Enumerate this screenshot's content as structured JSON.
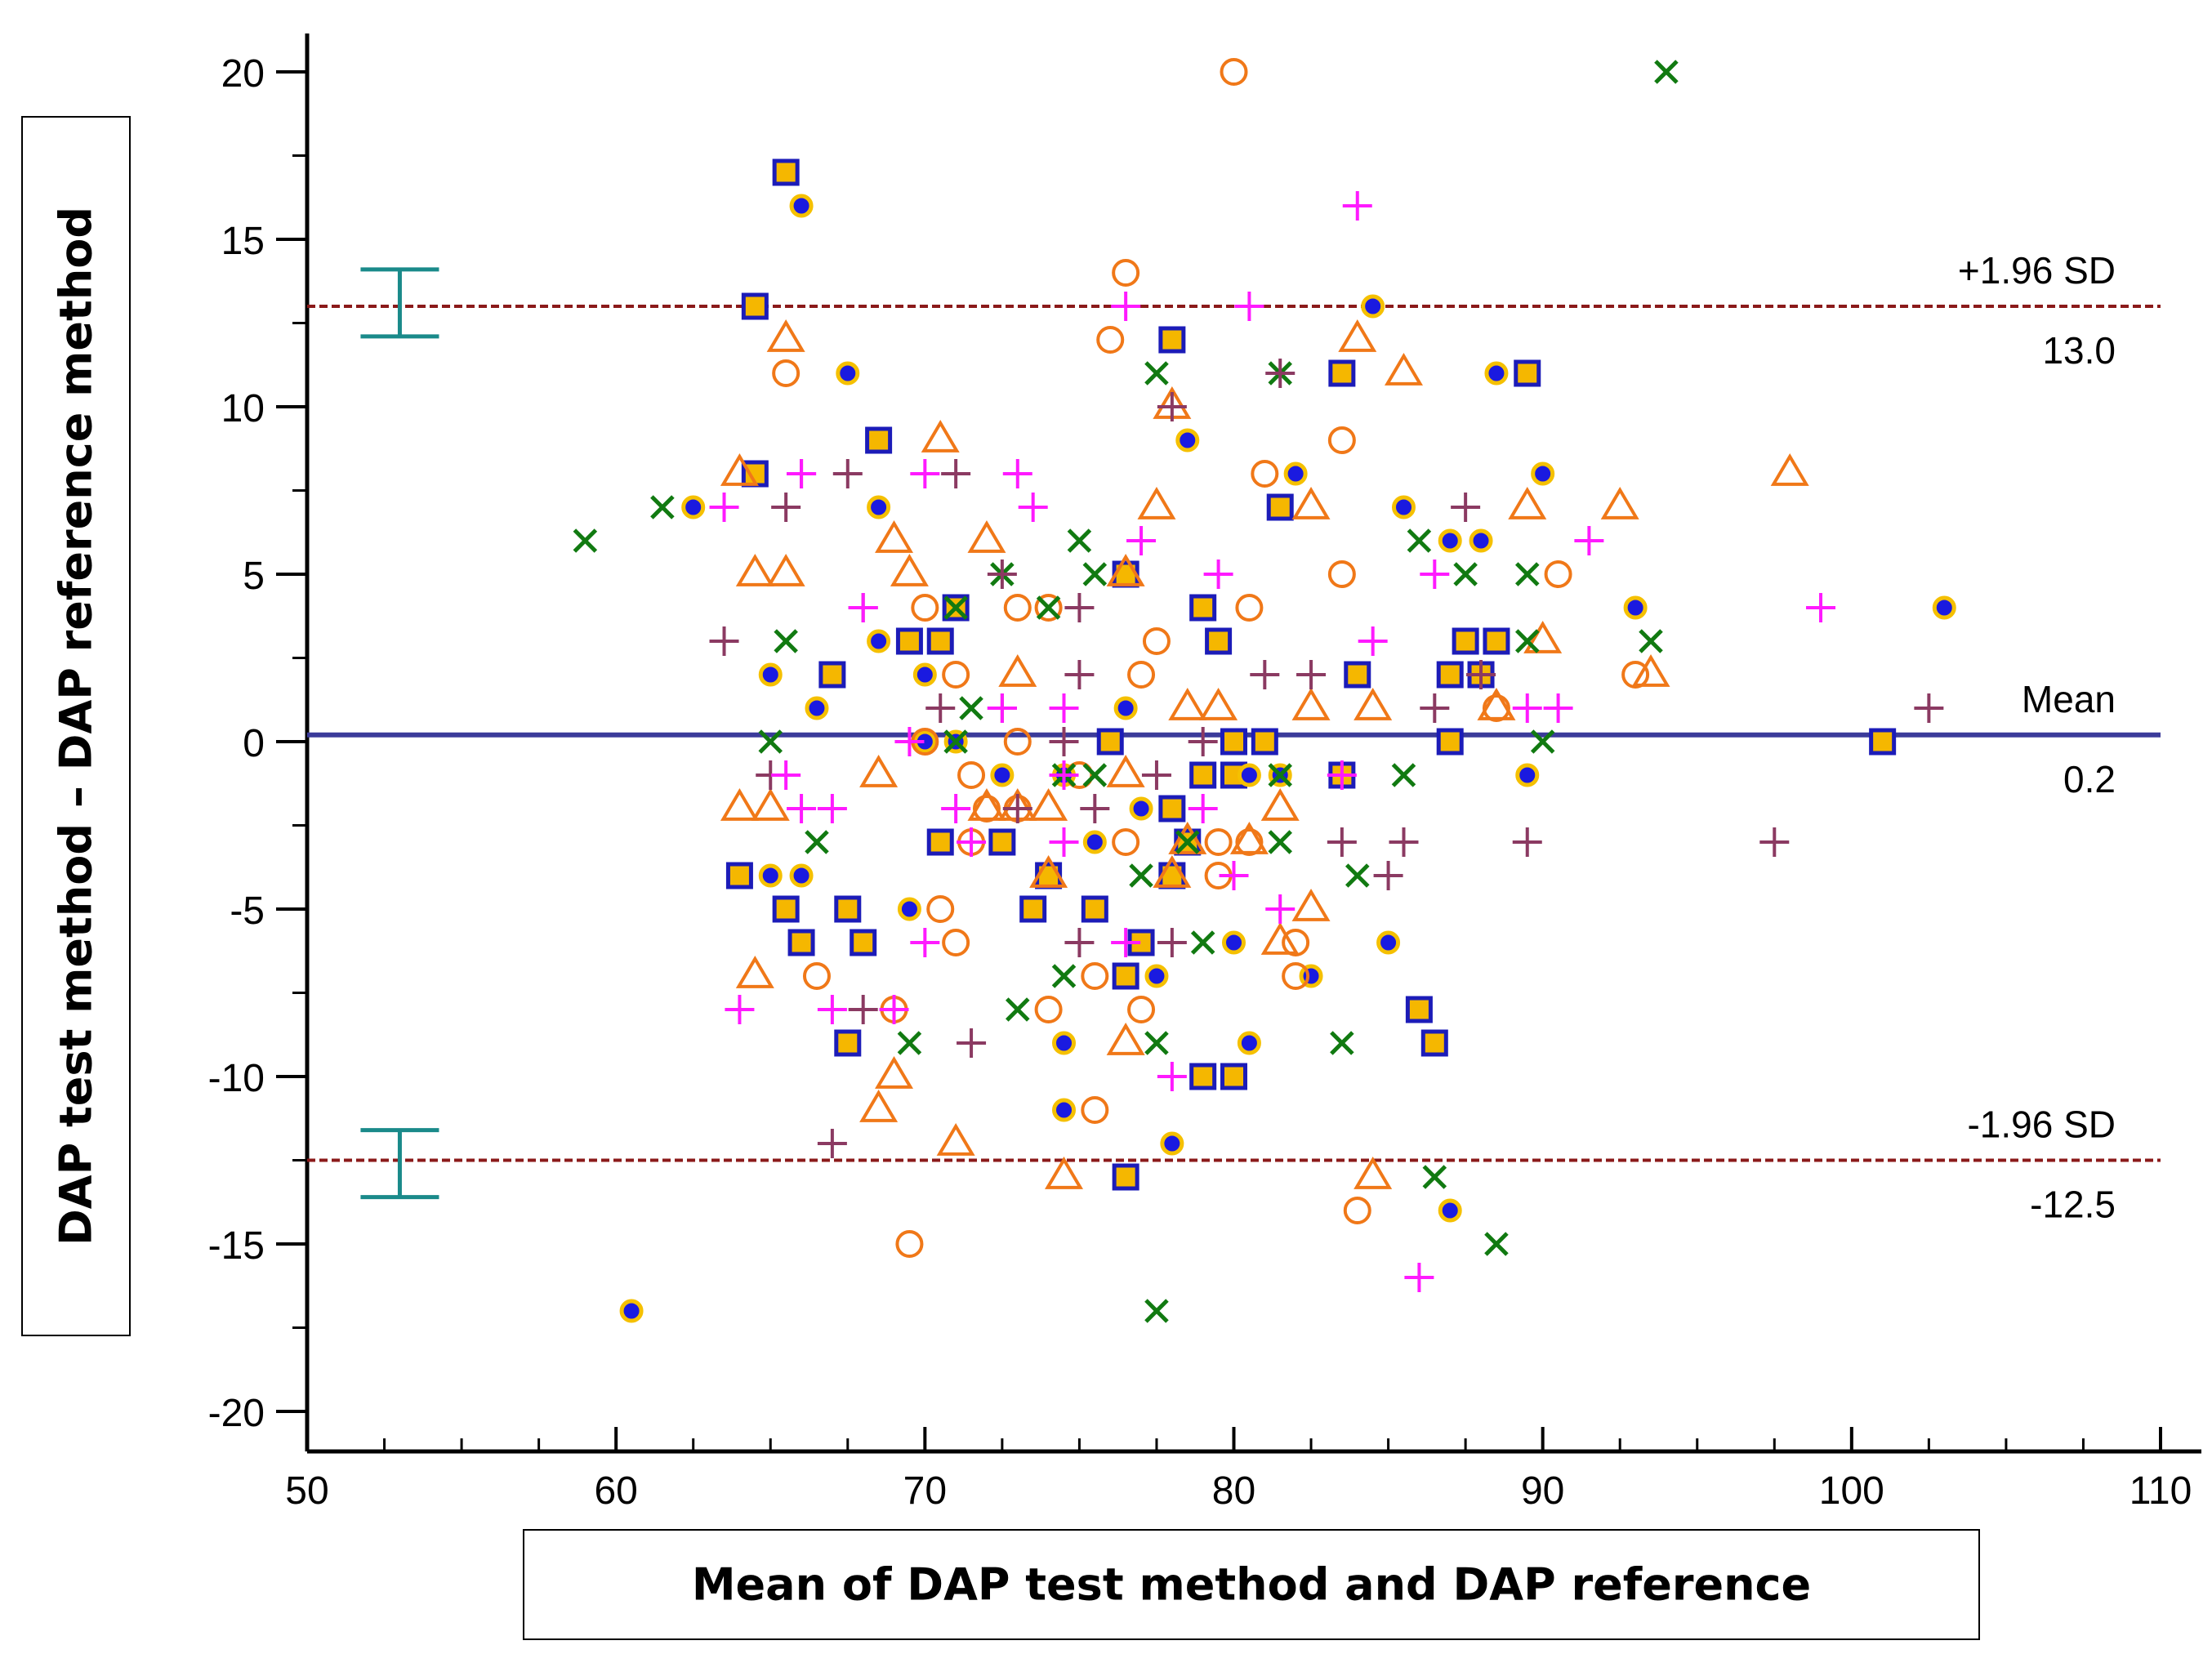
{
  "chart_data": {
    "type": "scatter",
    "title": "",
    "xlabel": "Mean of DAP test method and DAP reference",
    "ylabel": "DAP test method – DAP reference method",
    "xlim": [
      50,
      110
    ],
    "ylim": [
      -20,
      20
    ],
    "xticks": [
      50,
      60,
      70,
      80,
      90,
      100,
      110
    ],
    "yticks": [
      20,
      15,
      10,
      5,
      0,
      -5,
      -10,
      -15,
      -20
    ],
    "grid": false,
    "reference_lines": [
      {
        "label": "+1.96 SD",
        "value_label": "13.0",
        "value": 13.0,
        "style": "dashed",
        "color": "#8b1a1a"
      },
      {
        "label": "Mean",
        "value_label": "0.2",
        "value": 0.2,
        "style": "solid",
        "color": "#3b3b9a"
      },
      {
        "label": "-1.96 SD",
        "value_label": "-12.5",
        "value": -12.5,
        "style": "dashed",
        "color": "#8b1a1a"
      }
    ],
    "ci_bars": [
      {
        "x": 53,
        "y_low": 12.1,
        "y_high": 14.1,
        "color": "#1a8a8a"
      },
      {
        "x": 53,
        "y_low": -13.6,
        "y_high": -11.6,
        "color": "#1a8a8a"
      }
    ],
    "series": [
      {
        "marker": "square",
        "fill": "#f5b700",
        "edge": "#1c1cb8",
        "points": [
          [
            65.5,
            17
          ],
          [
            64.5,
            13
          ],
          [
            78,
            12
          ],
          [
            83.5,
            11
          ],
          [
            89.5,
            11
          ],
          [
            64.5,
            8
          ],
          [
            68.5,
            9
          ],
          [
            81.5,
            7
          ],
          [
            76.5,
            5
          ],
          [
            79,
            4
          ],
          [
            71,
            4
          ],
          [
            69.5,
            3
          ],
          [
            70.5,
            3
          ],
          [
            79.5,
            3
          ],
          [
            84,
            2
          ],
          [
            87,
            2
          ],
          [
            88,
            2
          ],
          [
            87.5,
            3
          ],
          [
            88.5,
            3
          ],
          [
            67,
            2
          ],
          [
            76,
            0
          ],
          [
            80,
            0
          ],
          [
            81,
            0
          ],
          [
            87,
            0
          ],
          [
            101,
            0
          ],
          [
            79,
            -1
          ],
          [
            80,
            -1
          ],
          [
            83.5,
            -1
          ],
          [
            78,
            -2
          ],
          [
            70.5,
            -3
          ],
          [
            72.5,
            -3
          ],
          [
            78.5,
            -3
          ],
          [
            64,
            -4
          ],
          [
            74,
            -4
          ],
          [
            78,
            -4
          ],
          [
            65.5,
            -5
          ],
          [
            67.5,
            -5
          ],
          [
            73.5,
            -5
          ],
          [
            75.5,
            -5
          ],
          [
            66,
            -6
          ],
          [
            68,
            -6
          ],
          [
            77,
            -6
          ],
          [
            76.5,
            -7
          ],
          [
            67.5,
            -9
          ],
          [
            86,
            -8
          ],
          [
            86.5,
            -9
          ],
          [
            79,
            -10
          ],
          [
            80,
            -10
          ],
          [
            76.5,
            -13
          ]
        ]
      },
      {
        "marker": "dot",
        "fill": "#1a1ae0",
        "edge": "#f5c000",
        "points": [
          [
            66,
            16
          ],
          [
            84.5,
            13
          ],
          [
            67.5,
            11
          ],
          [
            88.5,
            11
          ],
          [
            78.5,
            9
          ],
          [
            82,
            8
          ],
          [
            90,
            8
          ],
          [
            62.5,
            7
          ],
          [
            68.5,
            7
          ],
          [
            85.5,
            7
          ],
          [
            87,
            6
          ],
          [
            88,
            6
          ],
          [
            93,
            4
          ],
          [
            103,
            4
          ],
          [
            65,
            2
          ],
          [
            70,
            2
          ],
          [
            66.5,
            1
          ],
          [
            76.5,
            1
          ],
          [
            68.5,
            3
          ],
          [
            70,
            0
          ],
          [
            71,
            0
          ],
          [
            72.5,
            -1
          ],
          [
            74.5,
            -1
          ],
          [
            80.5,
            -1
          ],
          [
            81.5,
            -1
          ],
          [
            89.5,
            -1
          ],
          [
            77,
            -2
          ],
          [
            75.5,
            -3
          ],
          [
            65,
            -4
          ],
          [
            66,
            -4
          ],
          [
            69.5,
            -5
          ],
          [
            80,
            -6
          ],
          [
            85,
            -6
          ],
          [
            77.5,
            -7
          ],
          [
            82.5,
            -7
          ],
          [
            74.5,
            -9
          ],
          [
            80.5,
            -9
          ],
          [
            74.5,
            -11
          ],
          [
            78,
            -12
          ],
          [
            87,
            -14
          ],
          [
            60.5,
            -17
          ]
        ]
      },
      {
        "marker": "circle",
        "fill": "none",
        "edge": "#f07818",
        "points": [
          [
            80,
            20
          ],
          [
            76.5,
            14
          ],
          [
            76,
            12
          ],
          [
            65.5,
            11
          ],
          [
            83.5,
            9
          ],
          [
            81,
            8
          ],
          [
            80.5,
            4
          ],
          [
            83.5,
            5
          ],
          [
            90.5,
            5
          ],
          [
            70,
            4
          ],
          [
            74,
            4
          ],
          [
            73,
            4
          ],
          [
            77.5,
            3
          ],
          [
            71,
            2
          ],
          [
            77,
            2
          ],
          [
            93,
            2
          ],
          [
            88.5,
            1
          ],
          [
            73,
            0
          ],
          [
            70,
            0
          ],
          [
            71.5,
            -1
          ],
          [
            75,
            -1
          ],
          [
            72,
            -2
          ],
          [
            73,
            -2
          ],
          [
            71.5,
            -3
          ],
          [
            76.5,
            -3
          ],
          [
            79.5,
            -3
          ],
          [
            80.5,
            -3
          ],
          [
            79.5,
            -4
          ],
          [
            70.5,
            -5
          ],
          [
            71,
            -6
          ],
          [
            82,
            -6
          ],
          [
            66.5,
            -7
          ],
          [
            75.5,
            -7
          ],
          [
            82,
            -7
          ],
          [
            74,
            -8
          ],
          [
            77,
            -8
          ],
          [
            69,
            -8
          ],
          [
            75.5,
            -11
          ],
          [
            84,
            -14
          ],
          [
            69.5,
            -15
          ]
        ]
      },
      {
        "marker": "triangle",
        "fill": "none",
        "edge": "#f07818",
        "points": [
          [
            65.5,
            12
          ],
          [
            84,
            12
          ],
          [
            85.5,
            11
          ],
          [
            78,
            10
          ],
          [
            70.5,
            9
          ],
          [
            64,
            8
          ],
          [
            98,
            8
          ],
          [
            77.5,
            7
          ],
          [
            82.5,
            7
          ],
          [
            89.5,
            7
          ],
          [
            92.5,
            7
          ],
          [
            72,
            6
          ],
          [
            69,
            6
          ],
          [
            69.5,
            5
          ],
          [
            76.5,
            5
          ],
          [
            64.5,
            5
          ],
          [
            65.5,
            5
          ],
          [
            73,
            2
          ],
          [
            90,
            3
          ],
          [
            93.5,
            2
          ],
          [
            78.5,
            1
          ],
          [
            79.5,
            1
          ],
          [
            84.5,
            1
          ],
          [
            82.5,
            1
          ],
          [
            88.5,
            1
          ],
          [
            68.5,
            -1
          ],
          [
            76.5,
            -1
          ],
          [
            72,
            -2
          ],
          [
            73,
            -2
          ],
          [
            64,
            -2
          ],
          [
            65,
            -2
          ],
          [
            74,
            -2
          ],
          [
            81.5,
            -2
          ],
          [
            78.5,
            -3
          ],
          [
            80.5,
            -3
          ],
          [
            74,
            -4
          ],
          [
            78,
            -4
          ],
          [
            82.5,
            -5
          ],
          [
            81.5,
            -6
          ],
          [
            64.5,
            -7
          ],
          [
            76.5,
            -9
          ],
          [
            69,
            -10
          ],
          [
            68.5,
            -11
          ],
          [
            71,
            -12
          ],
          [
            74.5,
            -13
          ],
          [
            84.5,
            -13
          ]
        ]
      },
      {
        "marker": "x",
        "fill": "none",
        "edge": "#117a11",
        "points": [
          [
            94,
            20
          ],
          [
            81.5,
            11
          ],
          [
            77.5,
            11
          ],
          [
            61.5,
            7
          ],
          [
            59,
            6
          ],
          [
            75,
            6
          ],
          [
            86,
            6
          ],
          [
            75.5,
            5
          ],
          [
            87.5,
            5
          ],
          [
            89.5,
            5
          ],
          [
            72.5,
            5
          ],
          [
            71,
            4
          ],
          [
            74,
            4
          ],
          [
            65.5,
            3
          ],
          [
            89.5,
            3
          ],
          [
            93.5,
            3
          ],
          [
            71.5,
            1
          ],
          [
            65,
            0
          ],
          [
            71,
            0
          ],
          [
            90,
            0
          ],
          [
            74.5,
            -1
          ],
          [
            75.5,
            -1
          ],
          [
            81.5,
            -1
          ],
          [
            85.5,
            -1
          ],
          [
            66.5,
            -3
          ],
          [
            78.5,
            -3
          ],
          [
            81.5,
            -3
          ],
          [
            77,
            -4
          ],
          [
            84,
            -4
          ],
          [
            79,
            -6
          ],
          [
            74.5,
            -7
          ],
          [
            73,
            -8
          ],
          [
            69.5,
            -9
          ],
          [
            77.5,
            -9
          ],
          [
            83.5,
            -9
          ],
          [
            86.5,
            -13
          ],
          [
            88.5,
            -15
          ],
          [
            77.5,
            -17
          ]
        ]
      },
      {
        "marker": "plus",
        "fill": "none",
        "edge": "#8b3a62",
        "points": [
          [
            81.5,
            11
          ],
          [
            78,
            10
          ],
          [
            66,
            8
          ],
          [
            67.5,
            8
          ],
          [
            71,
            8
          ],
          [
            65.5,
            7
          ],
          [
            87.5,
            7
          ],
          [
            75,
            4
          ],
          [
            68,
            4
          ],
          [
            72.5,
            5
          ],
          [
            63.5,
            3
          ],
          [
            70.5,
            1
          ],
          [
            72.5,
            1
          ],
          [
            81,
            2
          ],
          [
            82.5,
            2
          ],
          [
            88,
            2
          ],
          [
            86.5,
            1
          ],
          [
            102.5,
            1
          ],
          [
            75,
            2
          ],
          [
            74.5,
            0
          ],
          [
            79,
            0
          ],
          [
            65,
            -1
          ],
          [
            77.5,
            -1
          ],
          [
            73,
            -2
          ],
          [
            75.5,
            -2
          ],
          [
            83.5,
            -3
          ],
          [
            85.5,
            -3
          ],
          [
            89.5,
            -3
          ],
          [
            97.5,
            -3
          ],
          [
            85,
            -4
          ],
          [
            75,
            -6
          ],
          [
            78,
            -6
          ],
          [
            68,
            -8
          ],
          [
            71.5,
            -9
          ],
          [
            67,
            -12
          ]
        ]
      },
      {
        "marker": "plus",
        "fill": "none",
        "edge": "#ff1aff",
        "points": [
          [
            84,
            16
          ],
          [
            76.5,
            13
          ],
          [
            80.5,
            13
          ],
          [
            66,
            8
          ],
          [
            70,
            8
          ],
          [
            73,
            8
          ],
          [
            63.5,
            7
          ],
          [
            73.5,
            7
          ],
          [
            77,
            6
          ],
          [
            79.5,
            5
          ],
          [
            86.5,
            5
          ],
          [
            91.5,
            6
          ],
          [
            68,
            4
          ],
          [
            84.5,
            3
          ],
          [
            99,
            4
          ],
          [
            72.5,
            1
          ],
          [
            74.5,
            1
          ],
          [
            89.5,
            1
          ],
          [
            90.5,
            1
          ],
          [
            69.5,
            0
          ],
          [
            71,
            -2
          ],
          [
            74.5,
            -1
          ],
          [
            83.5,
            -1
          ],
          [
            65.5,
            -1
          ],
          [
            66,
            -2
          ],
          [
            67,
            -2
          ],
          [
            79,
            -2
          ],
          [
            71.5,
            -3
          ],
          [
            74.5,
            -3
          ],
          [
            80,
            -4
          ],
          [
            81.5,
            -5
          ],
          [
            70,
            -6
          ],
          [
            76.5,
            -6
          ],
          [
            64,
            -8
          ],
          [
            67,
            -8
          ],
          [
            69,
            -8
          ],
          [
            78,
            -10
          ],
          [
            86,
            -16
          ]
        ]
      }
    ]
  }
}
